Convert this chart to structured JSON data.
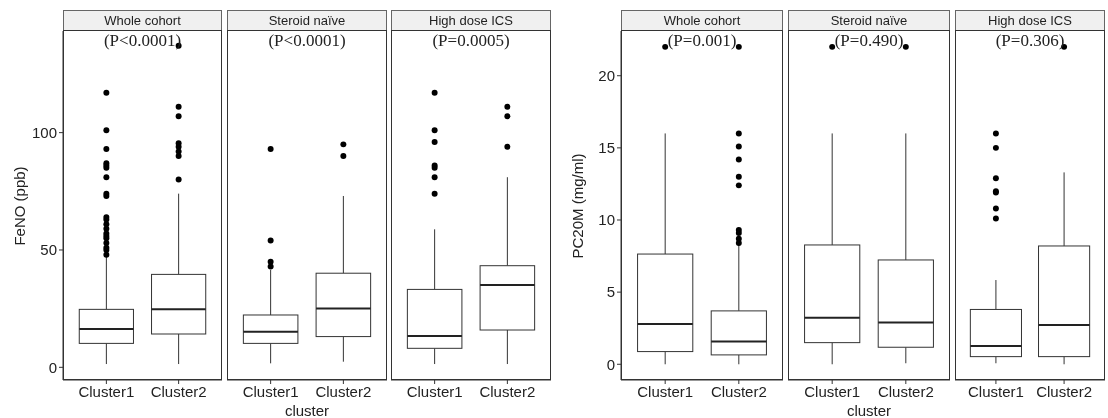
{
  "chart_data": [
    {
      "type": "box",
      "title": "Whole cohort",
      "ylabel": "FeNO (ppb)",
      "annotations": [
        "(P<0.0001)"
      ],
      "categories": [
        "Cluster1",
        "Cluster2"
      ],
      "ylim": [
        -5.4,
        143.3
      ],
      "yticks": [
        0,
        50,
        100
      ],
      "boxes": [
        {
          "low": 1.4,
          "q1": 10.2,
          "median": 16.3,
          "q3": 24.7,
          "high": 47,
          "outliers": [
            117,
            101,
            93,
            87,
            86,
            85,
            81,
            74,
            73,
            64,
            63,
            61,
            59,
            57,
            56,
            55,
            53,
            51,
            50,
            48
          ]
        },
        {
          "low": 1.4,
          "q1": 14.2,
          "median": 24.7,
          "q3": 39.6,
          "high": 74,
          "outliers": [
            137,
            111,
            107,
            95.5,
            94,
            92,
            90,
            80
          ]
        }
      ]
    },
    {
      "type": "box",
      "title": "Steroid naïve",
      "xlabel": "cluster",
      "annotations": [
        "(P<0.0001)"
      ],
      "categories": [
        "Cluster1",
        "Cluster2"
      ],
      "ylim": [
        -5.4,
        143.3
      ],
      "yticks": [
        0,
        50,
        100
      ],
      "tick_labels": "x",
      "boxes": [
        {
          "low": 1.7,
          "q1": 10.2,
          "median": 15.2,
          "q3": 22.3,
          "high": 41.5,
          "outliers": [
            93,
            54,
            45,
            43
          ]
        },
        {
          "low": 2.4,
          "q1": 13.1,
          "median": 25.1,
          "q3": 40.1,
          "high": 73,
          "outliers": [
            95,
            90
          ]
        }
      ]
    },
    {
      "type": "box",
      "title": "High dose ICS",
      "annotations": [
        "(P=0.0005)"
      ],
      "categories": [
        "Cluster1",
        "Cluster2"
      ],
      "ylim": [
        -5.4,
        143.3
      ],
      "yticks": [
        0,
        50,
        100
      ],
      "tick_labels": "x",
      "boxes": [
        {
          "low": 1.4,
          "q1": 8.1,
          "median": 13.4,
          "q3": 33.2,
          "high": 58.8,
          "outliers": [
            117,
            101,
            96,
            86,
            85,
            81,
            74
          ]
        },
        {
          "low": 1.4,
          "q1": 15.9,
          "median": 35.1,
          "q3": 43.3,
          "high": 81,
          "outliers": [
            111,
            107,
            94
          ]
        }
      ]
    },
    {
      "type": "box",
      "title": "Whole cohort",
      "ylabel": "PC20M (mg/ml)",
      "annotations": [
        "(P=0.001)"
      ],
      "categories": [
        "Cluster1",
        "Cluster2"
      ],
      "ylim": [
        -1.09,
        23.1
      ],
      "yticks": [
        0,
        5,
        10,
        15,
        20
      ],
      "boxes": [
        {
          "low": 0,
          "q1": 0.88,
          "median": 2.8,
          "q3": 7.64,
          "high": 16,
          "outliers": [
            22
          ]
        },
        {
          "low": 0,
          "q1": 0.65,
          "median": 1.57,
          "q3": 3.7,
          "high": 8.3,
          "outliers": [
            22,
            16,
            15.1,
            14.2,
            13,
            12.4,
            9.3,
            9.1,
            8.7,
            8.4
          ]
        }
      ]
    },
    {
      "type": "box",
      "title": "Steroid naïve",
      "xlabel": "cluster",
      "annotations": [
        "(P=0.490)"
      ],
      "categories": [
        "Cluster1",
        "Cluster2"
      ],
      "ylim": [
        -1.09,
        23.1
      ],
      "yticks": [
        0,
        5,
        10,
        15,
        20
      ],
      "tick_labels": "x",
      "boxes": [
        {
          "low": 0,
          "q1": 1.5,
          "median": 3.23,
          "q3": 8.27,
          "high": 16,
          "outliers": [
            22
          ]
        },
        {
          "low": 0.07,
          "q1": 1.18,
          "median": 2.9,
          "q3": 7.23,
          "high": 16,
          "outliers": [
            22
          ]
        }
      ]
    },
    {
      "type": "box",
      "title": "High dose ICS",
      "annotations": [
        "(P=0.306)"
      ],
      "categories": [
        "Cluster1",
        "Cluster2"
      ],
      "ylim": [
        -1.09,
        23.1
      ],
      "yticks": [
        0,
        5,
        10,
        15,
        20
      ],
      "tick_labels": "x",
      "boxes": [
        {
          "low": 0.07,
          "q1": 0.53,
          "median": 1.27,
          "q3": 3.8,
          "high": 5.84,
          "outliers": [
            16,
            15,
            12.9,
            12,
            11.9,
            10.8,
            10.1
          ]
        },
        {
          "low": 0,
          "q1": 0.53,
          "median": 2.73,
          "q3": 8.2,
          "high": 13.3,
          "outliers": [
            22
          ]
        }
      ]
    }
  ]
}
